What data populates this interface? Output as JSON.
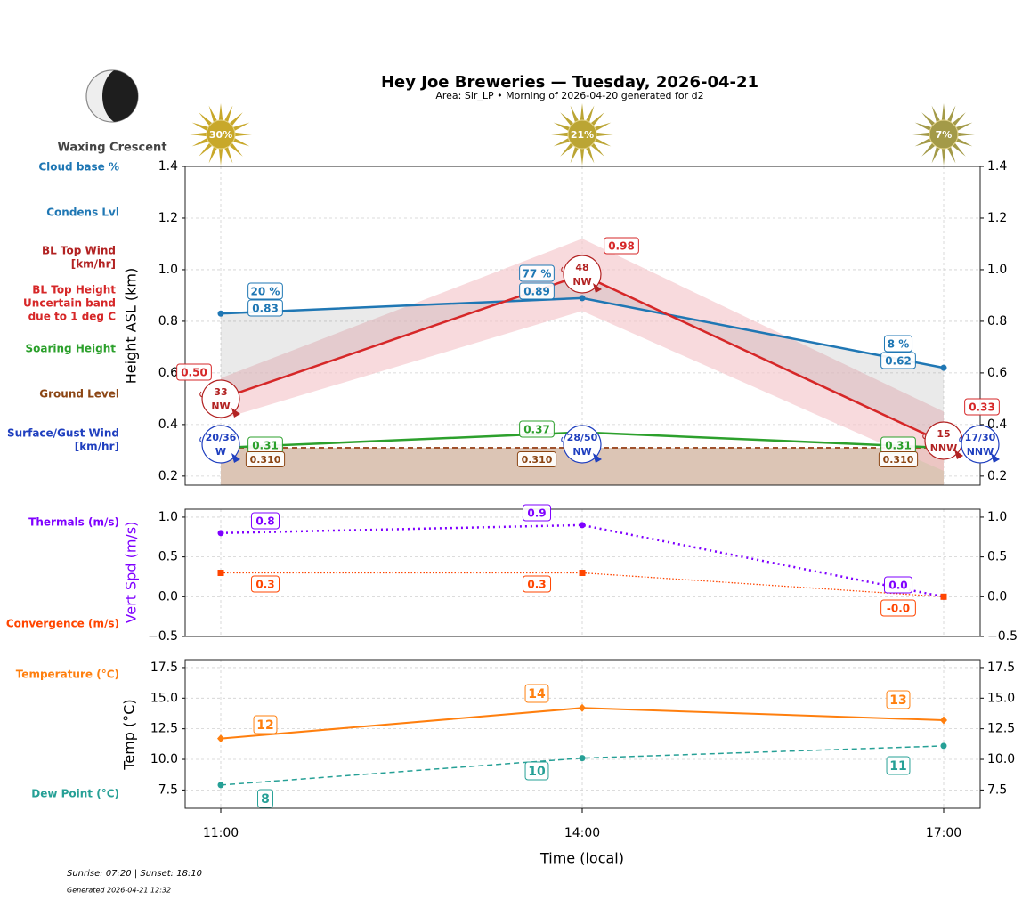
{
  "header": {
    "title": "Hey Joe Breweries — Tuesday, 2026-04-21",
    "subtitle": "Area: Sir_LP • Morning of 2026-04-20 generated for d2",
    "moon_phase": "Waxing Crescent"
  },
  "footer": {
    "sun_times": "Sunrise: 07:20 | Sunset: 18:10",
    "generated": "Generated 2026-04-21 12:32"
  },
  "colors": {
    "cloud": "#1f77b4",
    "bl_wind": "#b22222",
    "bl_top": "#d62728",
    "band": "#f5c6cb",
    "soaring": "#2ca02c",
    "ground": "#8b4513",
    "ground_fill": "#dcc5b5",
    "surface_wind": "#1f3fbf",
    "thermals": "#7f00ff",
    "convergence": "#ff4500",
    "temperature": "#ff7f0e",
    "dew_point": "#26a096",
    "sun": "#c8a82a"
  },
  "chart_data": [
    {
      "type": "line",
      "ylabel": "Height ASL (km)",
      "ylim": [
        0.165,
        1.4
      ],
      "yticks": [
        "0.2",
        "0.4",
        "0.6",
        "0.8",
        "1.0",
        "1.2",
        "1.4"
      ],
      "grid": true,
      "x": [
        "11:00",
        "14:00",
        "17:00"
      ],
      "sun_percent": [
        "30%",
        "21%",
        "7%"
      ],
      "row_labels": {
        "cloud_base": "Cloud base %",
        "condens": "Condens Lvl",
        "bl_wind": "BL Top Wind\n[km/hr]",
        "bl_top": "BL Top Height\nUncertain band\ndue to 1 deg C",
        "soaring": "Soaring Height",
        "ground": "Ground Level",
        "surface_wind": "Surface/Gust Wind\n[km/hr]"
      },
      "series": {
        "condens_lvl": {
          "values": [
            0.83,
            0.89,
            0.62
          ],
          "labels": [
            "0.83",
            "0.89",
            "0.62"
          ],
          "cloud_pct": [
            "20 %",
            "77 %",
            "8 %"
          ]
        },
        "bl_top": {
          "values": [
            0.5,
            0.98,
            0.33
          ],
          "labels": [
            "0.50",
            "0.98",
            "0.33"
          ],
          "band_low": [
            0.42,
            0.84,
            0.22
          ],
          "band_high": [
            0.58,
            1.12,
            0.45
          ]
        },
        "soaring": {
          "values": [
            0.31,
            0.37,
            0.31
          ],
          "labels": [
            "0.31",
            "0.37",
            "0.31"
          ]
        },
        "ground": {
          "values": [
            0.31,
            0.31,
            0.31
          ],
          "labels": [
            "0.310",
            "0.310",
            "0.310"
          ]
        },
        "bl_wind": [
          {
            "speed": "33",
            "dir": "NW"
          },
          {
            "speed": "48",
            "dir": "NW"
          },
          {
            "speed": "15",
            "dir": "NNW"
          }
        ],
        "surface_wind": [
          {
            "speed": "20/36",
            "dir": "W"
          },
          {
            "speed": "28/50",
            "dir": "NW"
          },
          {
            "speed": "17/30",
            "dir": "NNW"
          }
        ]
      }
    },
    {
      "type": "line",
      "ylabel": "Vert Spd (m/s)",
      "ylim": [
        -0.5,
        1.1
      ],
      "yticks": [
        "−0.5",
        "0.0",
        "0.5",
        "1.0"
      ],
      "grid": true,
      "x": [
        "11:00",
        "14:00",
        "17:00"
      ],
      "series": [
        {
          "name": "Thermals (m/s)",
          "values": [
            0.8,
            0.9,
            0.0
          ],
          "labels": [
            "0.8",
            "0.9",
            "0.0"
          ]
        },
        {
          "name": "Convergence (m/s)",
          "values": [
            0.3,
            0.3,
            0.0
          ],
          "labels": [
            "0.3",
            "0.3",
            "-0.0"
          ]
        }
      ]
    },
    {
      "type": "line",
      "ylabel": "Temp (°C)",
      "xlabel": "Time (local)",
      "ylim": [
        6.0,
        18.15
      ],
      "yticks": [
        "7.5",
        "10.0",
        "12.5",
        "15.0",
        "17.5"
      ],
      "grid": true,
      "x": [
        "11:00",
        "14:00",
        "17:00"
      ],
      "series": [
        {
          "name": "Temperature (°C)",
          "values": [
            11.7,
            14.2,
            13.2
          ],
          "labels": [
            "12",
            "14",
            "13"
          ]
        },
        {
          "name": "Dew Point (°C)",
          "values": [
            7.9,
            10.1,
            11.1
          ],
          "labels": [
            "8",
            "10",
            "11"
          ]
        }
      ]
    }
  ]
}
